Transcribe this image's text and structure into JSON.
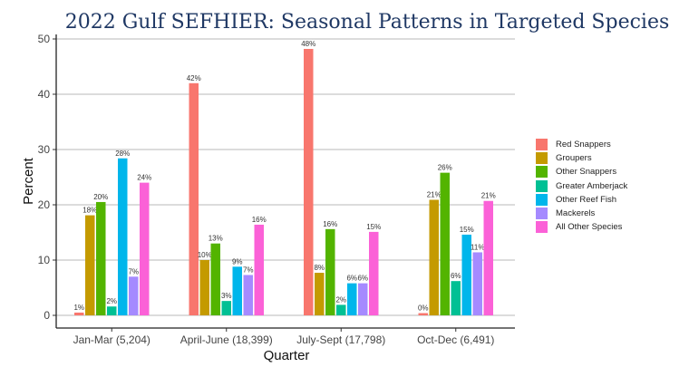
{
  "chart_data": {
    "type": "bar",
    "title": "2022 Gulf SEFHIER: Seasonal Patterns in Targeted Species",
    "xlabel": "Quarter",
    "ylabel": "Percent",
    "ylim": [
      0,
      50
    ],
    "yticks": [
      "0",
      "10",
      "20",
      "30",
      "40",
      "50"
    ],
    "grid": true,
    "legend_placement": "right",
    "categories": [
      "Jan-Mar (5,204)",
      "April-June (18,399)",
      "July-Sept (17,798)",
      "Oct-Dec (6,491)"
    ],
    "series": [
      {
        "name": "Red Snappers",
        "color": "#F8766D",
        "values": [
          0.5,
          42,
          48.2,
          0.4
        ],
        "labels": [
          "1%",
          "42%",
          "48%",
          "0%"
        ]
      },
      {
        "name": "Groupers",
        "color": "#C49A00",
        "values": [
          18.1,
          10,
          7.7,
          20.9
        ],
        "labels": [
          "18%",
          "10%",
          "8%",
          "21%"
        ]
      },
      {
        "name": "Other Snappers",
        "color": "#53B400",
        "values": [
          20.5,
          13,
          15.6,
          25.8
        ],
        "labels": [
          "20%",
          "13%",
          "16%",
          "26%"
        ]
      },
      {
        "name": "Greater Amberjack",
        "color": "#00C094",
        "values": [
          1.6,
          2.6,
          1.9,
          6.2
        ],
        "labels": [
          "2%",
          "3%",
          "2%",
          "6%"
        ]
      },
      {
        "name": "Other Reef Fish",
        "color": "#00B6EB",
        "values": [
          28.4,
          8.8,
          5.8,
          14.6
        ],
        "labels": [
          "28%",
          "9%",
          "6%",
          "15%"
        ]
      },
      {
        "name": "Mackerels",
        "color": "#A58AFF",
        "values": [
          7,
          7.3,
          5.8,
          11.4
        ],
        "labels": [
          "7%",
          "7%",
          "6%",
          "11%"
        ]
      },
      {
        "name": "All Other Species",
        "color": "#FB61D7",
        "values": [
          24,
          16.4,
          15.1,
          20.7
        ],
        "labels": [
          "24%",
          "16%",
          "15%",
          "21%"
        ]
      }
    ]
  }
}
